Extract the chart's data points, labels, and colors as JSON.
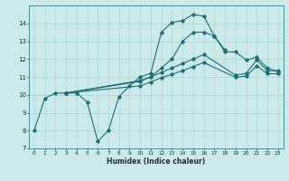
{
  "xlabel": "Humidex (Indice chaleur)",
  "xlim": [
    -0.5,
    23.5
  ],
  "ylim": [
    7,
    15
  ],
  "yticks": [
    7,
    8,
    9,
    10,
    11,
    12,
    13,
    14
  ],
  "xticks": [
    0,
    1,
    2,
    3,
    4,
    5,
    6,
    7,
    8,
    9,
    10,
    11,
    12,
    13,
    14,
    15,
    16,
    17,
    18,
    19,
    20,
    21,
    22,
    23
  ],
  "bg_color": "#cceaea",
  "grid_color": "#aad4d4",
  "line_color": "#1a7070",
  "line1_x": [
    0,
    1,
    2,
    3,
    4,
    5,
    6,
    7,
    8,
    9,
    10,
    11,
    12,
    13,
    14,
    15,
    16,
    17,
    18
  ],
  "line1_y": [
    8.0,
    9.8,
    10.1,
    10.1,
    10.1,
    9.6,
    7.4,
    8.0,
    9.9,
    10.5,
    11.0,
    11.2,
    13.5,
    14.05,
    14.15,
    14.5,
    14.4,
    13.3,
    12.5
  ],
  "line2_x": [
    3,
    10,
    11,
    12,
    13,
    14,
    15,
    16,
    17,
    18,
    19,
    20,
    21,
    22,
    23
  ],
  "line2_y": [
    10.1,
    10.8,
    11.0,
    11.5,
    12.0,
    13.0,
    13.5,
    13.5,
    13.3,
    12.4,
    12.4,
    11.95,
    12.1,
    11.5,
    11.3
  ],
  "line3_x": [
    3,
    10,
    11,
    12,
    13,
    14,
    15,
    16,
    19,
    20,
    21,
    22,
    23
  ],
  "line3_y": [
    10.1,
    10.75,
    11.0,
    11.25,
    11.5,
    11.75,
    12.0,
    12.25,
    11.1,
    11.2,
    11.95,
    11.35,
    11.35
  ],
  "line4_x": [
    3,
    10,
    11,
    12,
    13,
    14,
    15,
    16,
    19,
    20,
    21,
    22,
    23
  ],
  "line4_y": [
    10.1,
    10.5,
    10.72,
    10.95,
    11.15,
    11.35,
    11.58,
    11.8,
    10.98,
    11.05,
    11.62,
    11.18,
    11.18
  ]
}
